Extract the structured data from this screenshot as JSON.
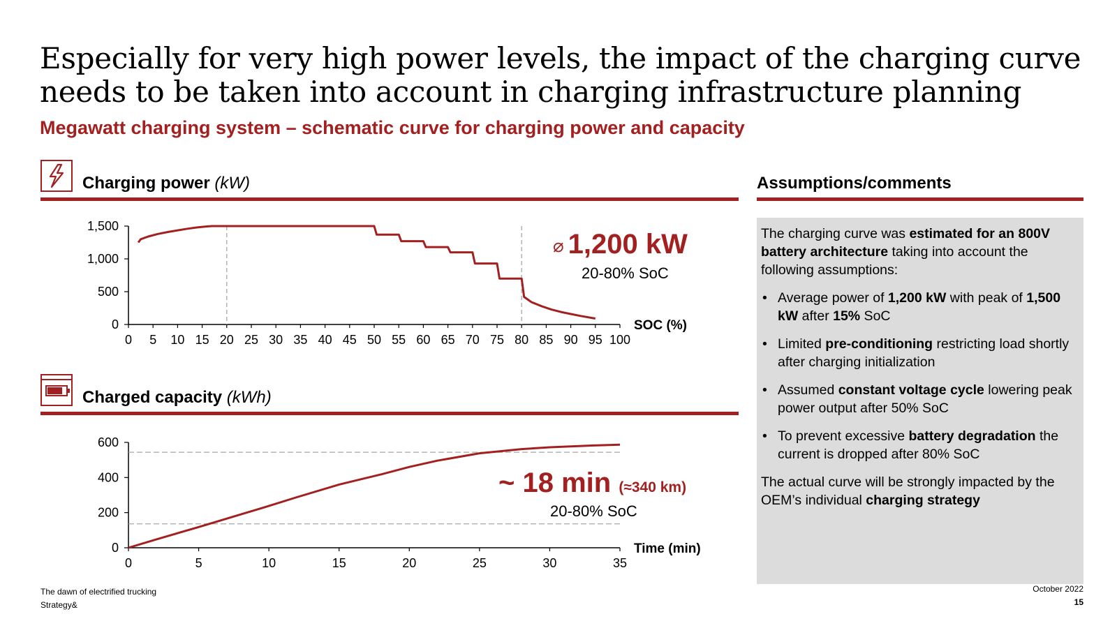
{
  "title": {
    "line1": "Especially for very high power levels, the impact of the charging curve",
    "line2": "needs to be taken into account in charging infrastructure planning"
  },
  "subtitle": "Megawatt charging system – schematic curve for charging power and capacity",
  "power_section": {
    "heading": "Charging power",
    "unit": "(kW)",
    "icon": "lightning-icon"
  },
  "capacity_section": {
    "heading": "Charged capacity",
    "unit": "(kWh)",
    "icon": "battery-icon"
  },
  "power_callout": {
    "symbol": "⌀",
    "value": "1,200 kW",
    "note": "20-80% SoC"
  },
  "capacity_callout": {
    "value": "~ 18 min",
    "extra": "(≈340 km)",
    "note": "20-80% SoC"
  },
  "assumptions": {
    "heading": "Assumptions/comments",
    "intro": [
      {
        "t": "The charging curve was ",
        "b": false
      },
      {
        "t": "estimated for an 800V battery architecture",
        "b": true
      },
      {
        "t": " taking into account the following assumptions:",
        "b": false
      }
    ],
    "bullets": [
      [
        {
          "t": "Average power of ",
          "b": false
        },
        {
          "t": "1,200 kW",
          "b": true
        },
        {
          "t": " with peak of ",
          "b": false
        },
        {
          "t": "1,500 kW",
          "b": true
        },
        {
          "t": " after ",
          "b": false
        },
        {
          "t": "15%",
          "b": true
        },
        {
          "t": " SoC",
          "b": false
        }
      ],
      [
        {
          "t": "Limited ",
          "b": false
        },
        {
          "t": "pre-conditioning",
          "b": true
        },
        {
          "t": " restricting load shortly after charging initialization",
          "b": false
        }
      ],
      [
        {
          "t": "Assumed ",
          "b": false
        },
        {
          "t": "constant voltage cycle",
          "b": true
        },
        {
          "t": " lowering peak power output after 50% SoC",
          "b": false
        }
      ],
      [
        {
          "t": "To prevent excessive ",
          "b": false
        },
        {
          "t": "battery degradation",
          "b": true
        },
        {
          "t": " the current is dropped after 80% SoC",
          "b": false
        }
      ]
    ],
    "outro": [
      {
        "t": "The actual curve will be strongly impacted by the OEM’s individual ",
        "b": false
      },
      {
        "t": "charging strategy",
        "b": true
      }
    ]
  },
  "footer": {
    "publication": "The dawn of electrified trucking",
    "company": "Strategy&",
    "date": "October 2022",
    "page": "15"
  },
  "colors": {
    "accent": "#a32020",
    "panel": "#dcdcdc",
    "guide": "#a6a6a6"
  },
  "chart_data": [
    {
      "type": "line",
      "xlabel": "SOC (%)",
      "ylabel": "",
      "xlim": [
        0,
        100
      ],
      "ylim": [
        0,
        1500
      ],
      "xticks": [
        0,
        5,
        10,
        15,
        20,
        25,
        30,
        35,
        40,
        45,
        50,
        55,
        60,
        65,
        70,
        75,
        80,
        85,
        90,
        95,
        100
      ],
      "yticks": [
        0,
        500,
        1000,
        1500
      ],
      "ytick_labels": [
        "0",
        "500",
        "1,000",
        "1,500"
      ],
      "reference_lines_x": [
        20,
        80
      ],
      "series": [
        {
          "x": [
            2,
            2.5,
            4,
            6,
            8,
            10,
            12,
            14,
            16,
            17,
            50,
            50.5,
            55,
            55.5,
            60,
            60.5,
            65,
            65.5,
            70,
            70.5,
            75,
            75.5,
            80,
            80.5,
            82,
            84,
            86,
            88,
            90,
            92,
            95
          ],
          "y": [
            1250,
            1300,
            1340,
            1380,
            1410,
            1435,
            1460,
            1480,
            1495,
            1500,
            1500,
            1370,
            1370,
            1270,
            1270,
            1180,
            1180,
            1100,
            1100,
            930,
            930,
            700,
            700,
            420,
            340,
            280,
            230,
            190,
            160,
            130,
            90
          ]
        }
      ]
    },
    {
      "type": "line",
      "xlabel": "Time (min)",
      "ylabel": "",
      "xlim": [
        0,
        35
      ],
      "ylim": [
        0,
        600
      ],
      "xticks": [
        0,
        5,
        10,
        15,
        20,
        25,
        30,
        35
      ],
      "yticks": [
        0,
        200,
        400,
        600
      ],
      "ytick_labels": [
        "0",
        "200",
        "400",
        "600"
      ],
      "reference_lines_y": [
        136,
        544
      ],
      "series": [
        {
          "x": [
            0,
            2,
            5,
            8,
            10,
            12,
            15,
            18,
            20,
            22,
            25,
            28,
            30,
            33,
            35
          ],
          "y": [
            0,
            48,
            118,
            190,
            238,
            288,
            360,
            418,
            460,
            496,
            538,
            562,
            572,
            582,
            587
          ]
        }
      ]
    }
  ]
}
